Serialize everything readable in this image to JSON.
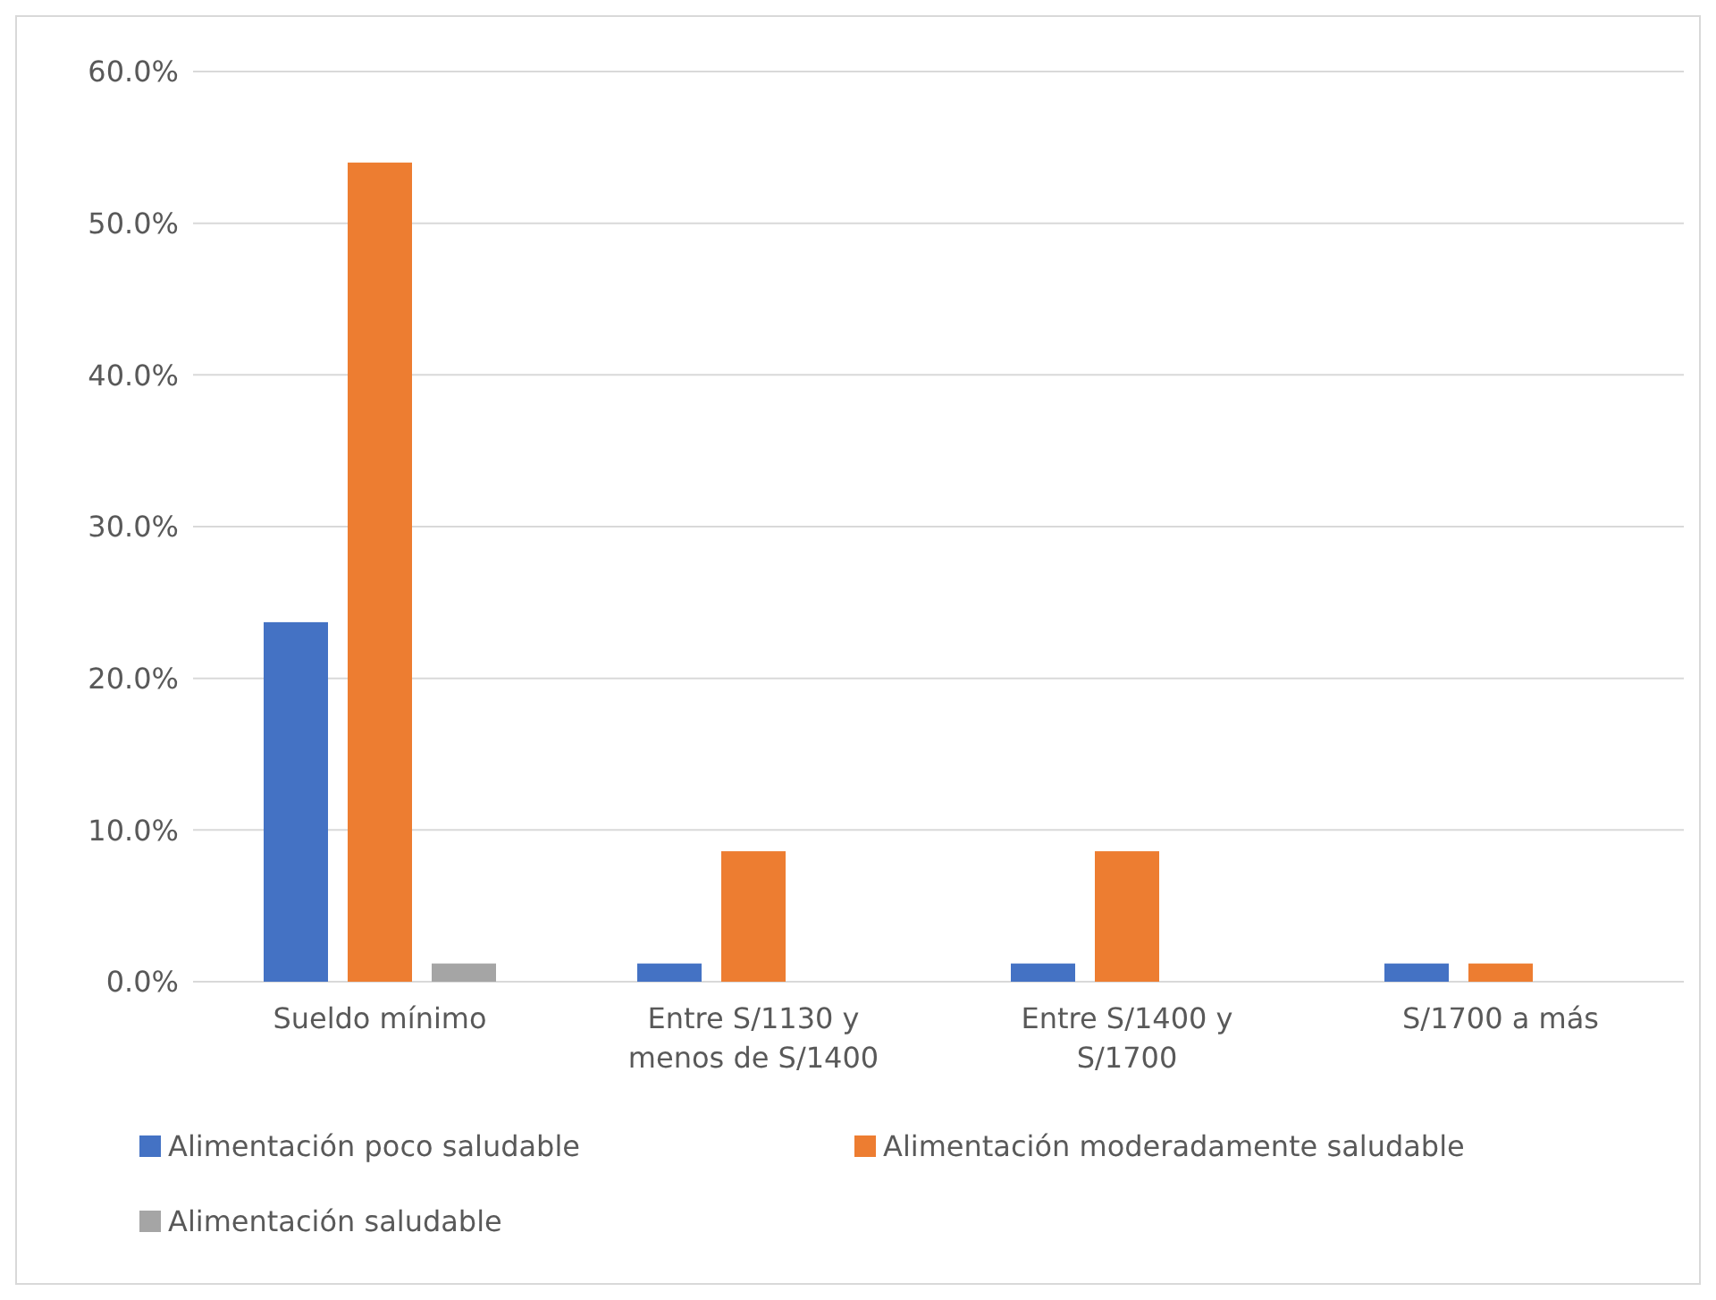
{
  "chart_data": {
    "type": "bar",
    "categories": [
      "Sueldo mínimo",
      "Entre S/1130 y menos de S/1400",
      "Entre S/1400 y S/1700",
      "S/1700 a más"
    ],
    "series": [
      {
        "name": "Alimentación poco saludable",
        "color": "#4472c4",
        "values": [
          23.7,
          1.2,
          1.2,
          1.2
        ]
      },
      {
        "name": "Alimentación moderadamente saludable",
        "color": "#ed7d31",
        "values": [
          54.0,
          8.6,
          8.6,
          1.2
        ]
      },
      {
        "name": "Alimentación saludable",
        "color": "#a5a5a5",
        "values": [
          1.2,
          0,
          0,
          0
        ]
      }
    ],
    "ylim": [
      0,
      60
    ],
    "yticks": [
      {
        "value": 0,
        "label": "0.0%"
      },
      {
        "value": 10,
        "label": "10.0%"
      },
      {
        "value": 20,
        "label": "20.0%"
      },
      {
        "value": 30,
        "label": "30.0%"
      },
      {
        "value": 40,
        "label": "40.0%"
      },
      {
        "value": 50,
        "label": "50.0%"
      },
      {
        "value": 60,
        "label": "60.0%"
      }
    ],
    "grid": "y",
    "legend": "bottom"
  }
}
